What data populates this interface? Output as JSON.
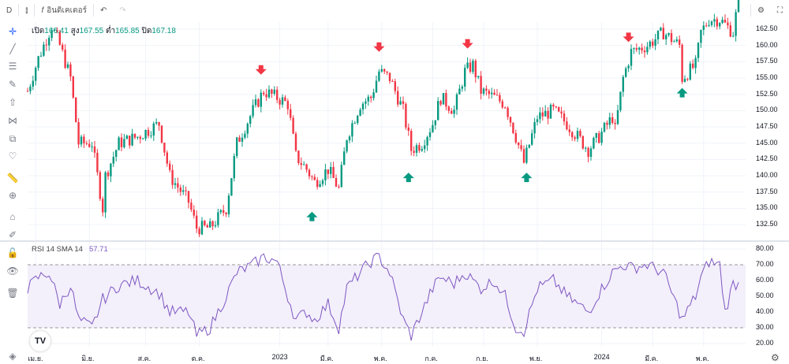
{
  "toolbar": {
    "interval": "D",
    "indicators": "อินดิเคเตอร์"
  },
  "legend": {
    "open_label": "เปิด",
    "open": "166.41",
    "high_label": "สูง",
    "high": "167.55",
    "low_label": "ต่ำ",
    "low": "165.85",
    "close_label": "ปิด",
    "close": "167.18"
  },
  "rsi": {
    "label": "RSI 14 SMA 14",
    "value": "57.71"
  },
  "colors": {
    "up": "#089981",
    "down": "#f23645",
    "rsi": "#7e57c2",
    "band": "#f3effb"
  },
  "chart_data": {
    "type": "candlestick",
    "price_axis": [
      "162.50",
      "160.00",
      "157.50",
      "155.00",
      "152.50",
      "150.00",
      "147.50",
      "145.00",
      "142.50",
      "140.00",
      "137.50",
      "135.00",
      "132.50"
    ],
    "price_range": [
      131,
      163.5
    ],
    "rsi_axis": [
      "80.00",
      "70.00",
      "60.00",
      "50.00",
      "40.00",
      "30.00",
      "20.00"
    ],
    "rsi_range": [
      18,
      82
    ],
    "rsi_bands": [
      30,
      70
    ],
    "x_labels": [
      {
        "t": "เม.ย.",
        "i": 3
      },
      {
        "t": "มิ.ย.",
        "i": 23
      },
      {
        "t": "ส.ค.",
        "i": 44
      },
      {
        "t": "ต.ค.",
        "i": 64
      },
      {
        "t": "2023",
        "i": 94
      },
      {
        "t": "มี.ค.",
        "i": 112
      },
      {
        "t": "พ.ค.",
        "i": 132
      },
      {
        "t": "ก.ค.",
        "i": 151
      },
      {
        "t": "ก.ย.",
        "i": 170
      },
      {
        "t": "พ.ย.",
        "i": 190
      },
      {
        "t": "2024",
        "i": 214
      },
      {
        "t": "มี.ค.",
        "i": 233
      },
      {
        "t": "พ.ค.",
        "i": 252
      }
    ],
    "price_path": [
      [
        0,
        153
      ],
      [
        4,
        158
      ],
      [
        9,
        163
      ],
      [
        12,
        160
      ],
      [
        16,
        155
      ],
      [
        19,
        145
      ],
      [
        24,
        145
      ],
      [
        28,
        135
      ],
      [
        29,
        140
      ],
      [
        34,
        145
      ],
      [
        41,
        146
      ],
      [
        49,
        148
      ],
      [
        53,
        140
      ],
      [
        60,
        136
      ],
      [
        63,
        132
      ],
      [
        68,
        132
      ],
      [
        74,
        135
      ],
      [
        78,
        145
      ],
      [
        84,
        150
      ],
      [
        88,
        153
      ],
      [
        93,
        152
      ],
      [
        97,
        151
      ],
      [
        100,
        143
      ],
      [
        104,
        141
      ],
      [
        107,
        139
      ],
      [
        112,
        141
      ],
      [
        116,
        138
      ],
      [
        119,
        146
      ],
      [
        124,
        151
      ],
      [
        128,
        152
      ],
      [
        131,
        156
      ],
      [
        135,
        155
      ],
      [
        140,
        150
      ],
      [
        143,
        144
      ],
      [
        147,
        145
      ],
      [
        151,
        148
      ],
      [
        154,
        152
      ],
      [
        159,
        150
      ],
      [
        163,
        156
      ],
      [
        166,
        157
      ],
      [
        169,
        153
      ],
      [
        174,
        152
      ],
      [
        178,
        151
      ],
      [
        182,
        146
      ],
      [
        185,
        142
      ],
      [
        190,
        149
      ],
      [
        196,
        150
      ],
      [
        201,
        148
      ],
      [
        209,
        144
      ],
      [
        213,
        146
      ],
      [
        218,
        149
      ],
      [
        219,
        147
      ],
      [
        222,
        155
      ],
      [
        225,
        159
      ],
      [
        231,
        160
      ],
      [
        237,
        162
      ],
      [
        243,
        160
      ],
      [
        244,
        155
      ],
      [
        249,
        157
      ],
      [
        251,
        162
      ],
      [
        254,
        164
      ],
      [
        258,
        164
      ],
      [
        263,
        162
      ],
      [
        265,
        167.18
      ]
    ],
    "rsi_path": [
      [
        0,
        55
      ],
      [
        4,
        62
      ],
      [
        8,
        65
      ],
      [
        12,
        45
      ],
      [
        16,
        57
      ],
      [
        19,
        35
      ],
      [
        24,
        30
      ],
      [
        28,
        48
      ],
      [
        34,
        57
      ],
      [
        41,
        60
      ],
      [
        49,
        52
      ],
      [
        53,
        40
      ],
      [
        60,
        40
      ],
      [
        63,
        25
      ],
      [
        68,
        30
      ],
      [
        74,
        50
      ],
      [
        78,
        65
      ],
      [
        84,
        70
      ],
      [
        88,
        75
      ],
      [
        93,
        72
      ],
      [
        97,
        50
      ],
      [
        100,
        35
      ],
      [
        104,
        40
      ],
      [
        107,
        35
      ],
      [
        112,
        45
      ],
      [
        116,
        30
      ],
      [
        119,
        55
      ],
      [
        124,
        65
      ],
      [
        128,
        72
      ],
      [
        131,
        75
      ],
      [
        135,
        65
      ],
      [
        140,
        35
      ],
      [
        143,
        25
      ],
      [
        147,
        40
      ],
      [
        151,
        55
      ],
      [
        154,
        62
      ],
      [
        159,
        58
      ],
      [
        163,
        65
      ],
      [
        166,
        60
      ],
      [
        169,
        55
      ],
      [
        174,
        60
      ],
      [
        178,
        50
      ],
      [
        182,
        30
      ],
      [
        185,
        28
      ],
      [
        190,
        55
      ],
      [
        196,
        60
      ],
      [
        201,
        50
      ],
      [
        209,
        40
      ],
      [
        213,
        52
      ],
      [
        218,
        65
      ],
      [
        222,
        70
      ],
      [
        225,
        68
      ],
      [
        231,
        70
      ],
      [
        237,
        65
      ],
      [
        243,
        40
      ],
      [
        244,
        35
      ],
      [
        249,
        50
      ],
      [
        251,
        62
      ],
      [
        254,
        72
      ],
      [
        258,
        70
      ],
      [
        260,
        40
      ],
      [
        263,
        58
      ],
      [
        265,
        57.71
      ]
    ],
    "signals": [
      {
        "type": "sell",
        "i": 87,
        "price": 156
      },
      {
        "type": "buy",
        "i": 106,
        "price": 134
      },
      {
        "type": "sell",
        "i": 131,
        "price": 159.5
      },
      {
        "type": "buy",
        "i": 142,
        "price": 140
      },
      {
        "type": "sell",
        "i": 164,
        "price": 160
      },
      {
        "type": "buy",
        "i": 186,
        "price": 140
      },
      {
        "type": "sell",
        "i": 224,
        "price": 161
      },
      {
        "type": "buy",
        "i": 244,
        "price": 153
      }
    ]
  }
}
